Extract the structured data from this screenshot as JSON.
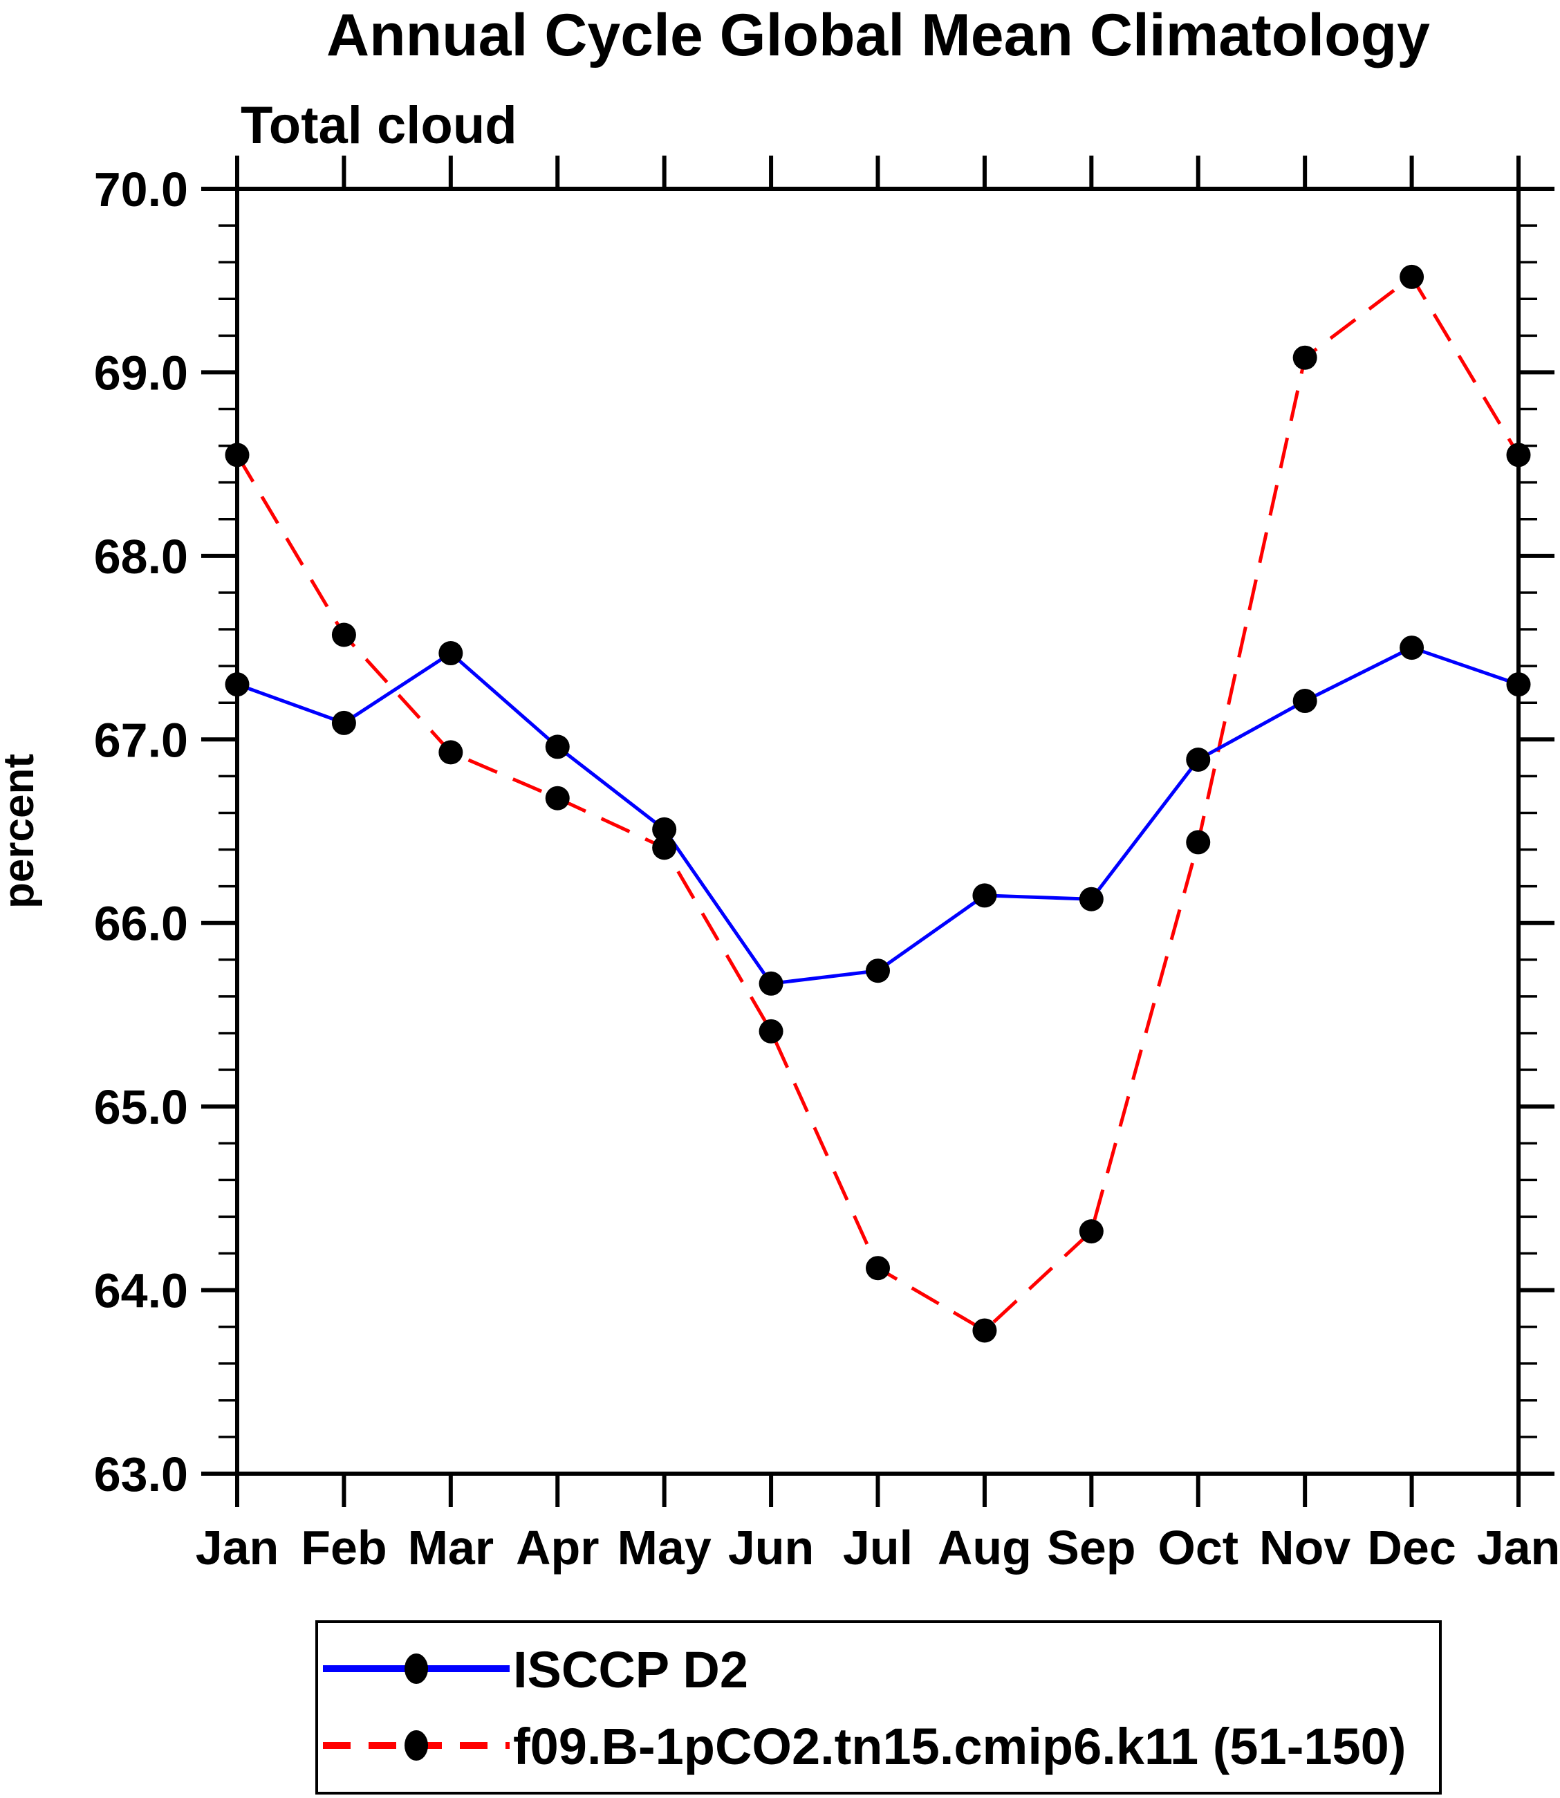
{
  "title": "Annual Cycle Global Mean Climatology",
  "subtitle": "Total cloud",
  "y_axis": {
    "label": "percent",
    "tick_labels": [
      "70.0",
      "69.0",
      "68.0",
      "67.0",
      "66.0",
      "65.0",
      "64.0",
      "63.0"
    ]
  },
  "x_axis": {
    "tick_labels": [
      "Jan",
      "Feb",
      "Mar",
      "Apr",
      "May",
      "Jun",
      "Jul",
      "Aug",
      "Sep",
      "Oct",
      "Nov",
      "Dec",
      "Jan"
    ]
  },
  "colors": {
    "series_blue": "#0000ff",
    "series_red": "#ff0000",
    "marker": "#000000",
    "axis": "#000000",
    "background": "#ffffff"
  },
  "legend": {
    "items": [
      {
        "label": "ISCCP D2",
        "color": "#0000ff",
        "line_style": "solid",
        "marker": "circle"
      },
      {
        "label": "f09.B-1pCO2.tn15.cmip6.k11 (51-150)",
        "color": "#ff0000",
        "line_style": "dashed",
        "marker": "circle"
      }
    ]
  },
  "chart_data": {
    "type": "line",
    "title": "Annual Cycle Global Mean Climatology",
    "subtitle": "Total cloud",
    "xlabel": "",
    "ylabel": "percent",
    "categories": [
      "Jan",
      "Feb",
      "Mar",
      "Apr",
      "May",
      "Jun",
      "Jul",
      "Aug",
      "Sep",
      "Oct",
      "Nov",
      "Dec",
      "Jan"
    ],
    "ylim": [
      63.0,
      70.0
    ],
    "y_major_step": 1.0,
    "y_minor_step": 0.2,
    "grid": false,
    "legend_position": "bottom",
    "series": [
      {
        "name": "ISCCP D2",
        "color": "#0000ff",
        "line_style": "solid",
        "marker": "circle",
        "values": [
          67.3,
          67.09,
          67.47,
          66.96,
          66.51,
          65.67,
          65.74,
          66.15,
          66.13,
          66.89,
          67.21,
          67.5,
          67.3
        ]
      },
      {
        "name": "f09.B-1pCO2.tn15.cmip6.k11 (51-150)",
        "color": "#ff0000",
        "line_style": "dashed",
        "marker": "circle",
        "values": [
          68.55,
          67.57,
          66.93,
          66.68,
          66.41,
          65.41,
          64.12,
          63.78,
          64.32,
          66.44,
          69.08,
          69.52,
          68.55
        ]
      }
    ]
  }
}
